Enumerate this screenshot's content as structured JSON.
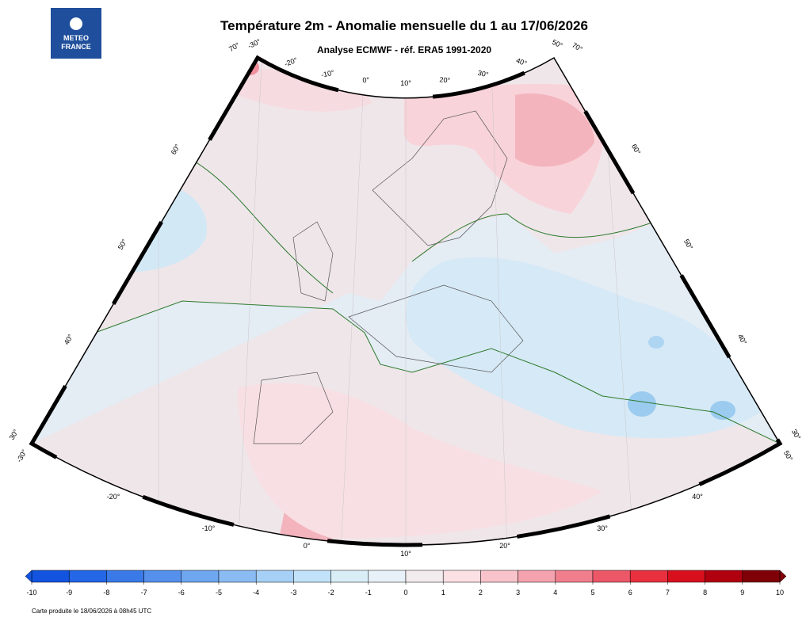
{
  "logo": {
    "line1": "METEO",
    "line2": "FRANCE"
  },
  "header": {
    "title": "Température 2m - Anomalie mensuelle du 1 au 17/06/2026",
    "subtitle": "Analyse ECMWF - réf. ERA5 1991-2020"
  },
  "map": {
    "graticule_labels": [
      "70°",
      "-30°",
      "-20°",
      "-10°",
      "0°",
      "10°",
      "20°",
      "30°",
      "40°",
      "50°",
      "70°",
      "60°",
      "50°",
      "40°",
      "30°",
      "-30°",
      "60°",
      "50°",
      "40°",
      "30°",
      "50°",
      "-20°",
      "-10°",
      "0°",
      "10°",
      "20°",
      "30°",
      "40°"
    ]
  },
  "colorbar": {
    "ticks": [
      -10,
      -9,
      -8,
      -7,
      -6,
      -5,
      -4,
      -3,
      -2,
      -1,
      0,
      1,
      2,
      3,
      4,
      5,
      6,
      7,
      8,
      9,
      10
    ],
    "colors": [
      "#1254e0",
      "#2366e6",
      "#3a7ae8",
      "#5590ec",
      "#6ea6f0",
      "#8abcf3",
      "#a6d0f6",
      "#c1e2f8",
      "#d9edf7",
      "#e8f1f7",
      "#f2ecef",
      "#fbe0e4",
      "#f8c3ca",
      "#f4a2ad",
      "#f07e8c",
      "#ec5868",
      "#e8303f",
      "#d8101e",
      "#b00010",
      "#800008"
    ]
  },
  "footer": "Carte produite le 18/06/2026 à 08h45 UTC"
}
